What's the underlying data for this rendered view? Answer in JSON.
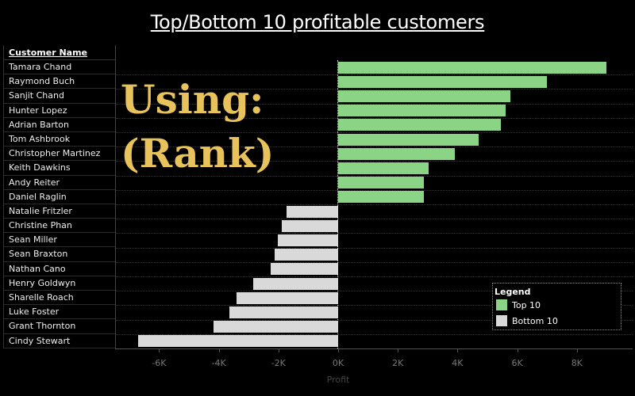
{
  "title": "Top/Bottom 10 profitable customers",
  "overlay": {
    "line1": "Using:",
    "line2": "(Rank)"
  },
  "table": {
    "header": "Customer Name"
  },
  "legend": {
    "title": "Legend",
    "items": [
      {
        "label": "Top 10",
        "color": "#8bd485"
      },
      {
        "label": "Bottom 10",
        "color": "#d9d9d9"
      }
    ]
  },
  "colors": {
    "top": "#8bd485",
    "bottom": "#d9d9d9",
    "overlay": "#e8c25a",
    "background": "#000000"
  },
  "chart_data": {
    "type": "bar",
    "orientation": "horizontal",
    "title": "Top/Bottom 10 profitable customers",
    "xlabel": "Profit",
    "ylabel": "Customer Name",
    "xlim": [
      -7500,
      9800
    ],
    "xticks": [
      "-6K",
      "-4K",
      "-2K",
      "0K",
      "2K",
      "4K",
      "6K",
      "8K"
    ],
    "xtick_values": [
      -6000,
      -4000,
      -2000,
      0,
      2000,
      4000,
      6000,
      8000
    ],
    "legend_position": "bottom-right",
    "grid": true,
    "categories": [
      "Tamara Chand",
      "Raymond Buch",
      "Sanjit Chand",
      "Hunter Lopez",
      "Adrian Barton",
      "Tom Ashbrook",
      "Christopher Martinez",
      "Keith Dawkins",
      "Andy Reiter",
      "Daniel Raglin",
      "Natalie Fritzler",
      "Christine Phan",
      "Sean Miller",
      "Sean Braxton",
      "Nathan Cano",
      "Henry Goldwyn",
      "Sharelle Roach",
      "Luke Foster",
      "Grant Thornton",
      "Cindy Stewart"
    ],
    "values": [
      9000,
      7000,
      5760,
      5620,
      5440,
      4700,
      3900,
      3040,
      2870,
      2870,
      -1730,
      -1890,
      -2020,
      -2130,
      -2260,
      -2850,
      -3400,
      -3640,
      -4180,
      -6700
    ],
    "groups": [
      "Top 10",
      "Top 10",
      "Top 10",
      "Top 10",
      "Top 10",
      "Top 10",
      "Top 10",
      "Top 10",
      "Top 10",
      "Top 10",
      "Bottom 10",
      "Bottom 10",
      "Bottom 10",
      "Bottom 10",
      "Bottom 10",
      "Bottom 10",
      "Bottom 10",
      "Bottom 10",
      "Bottom 10",
      "Bottom 10"
    ]
  }
}
